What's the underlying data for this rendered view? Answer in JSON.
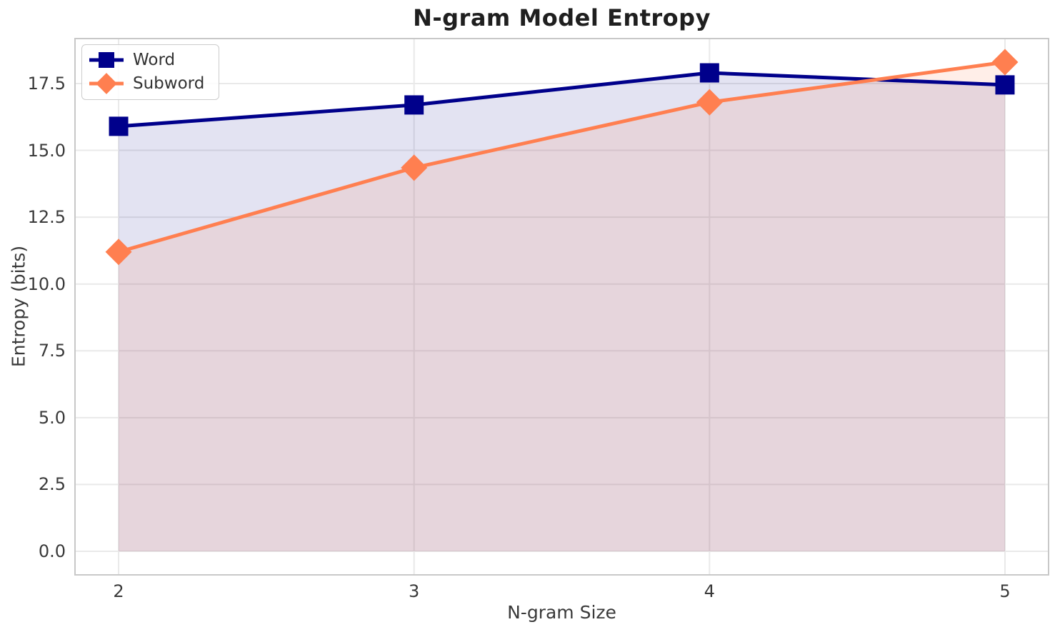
{
  "chart_data": {
    "type": "line",
    "title": "N-gram Model Entropy",
    "xlabel": "N-gram Size",
    "ylabel": "Entropy (bits)",
    "x": [
      2,
      3,
      4,
      5
    ],
    "series": [
      {
        "name": "Word",
        "values": [
          15.9,
          16.7,
          17.9,
          17.45
        ],
        "color": "#00008b",
        "marker": "square",
        "fill_alpha": 0.11,
        "line_width": 5
      },
      {
        "name": "Subword",
        "values": [
          11.2,
          14.35,
          16.8,
          18.3
        ],
        "color": "#ff7f50",
        "marker": "diamond",
        "fill_alpha": 0.13,
        "line_width": 5
      }
    ],
    "fill_to_zero": true,
    "xtick_labels": [
      "2",
      "3",
      "4",
      "5"
    ],
    "xtick_values": [
      2,
      3,
      4,
      5
    ],
    "ytick_labels": [
      "0.0",
      "2.5",
      "5.0",
      "7.5",
      "10.0",
      "12.5",
      "15.0",
      "17.5"
    ],
    "ytick_values": [
      0,
      2.5,
      5,
      7.5,
      10,
      12.5,
      15,
      17.5
    ],
    "xlim": [
      1.85,
      5.15
    ],
    "ylim": [
      -0.91,
      19.21
    ],
    "grid": true,
    "legend_position": "upper-left"
  },
  "colors": {
    "grid": "#e9e9e9",
    "spine": "#c8c8c8",
    "tick_text": "#3a3a3a",
    "title_text": "#1f1f1f",
    "legend_text": "#333333",
    "background": "#ffffff"
  }
}
